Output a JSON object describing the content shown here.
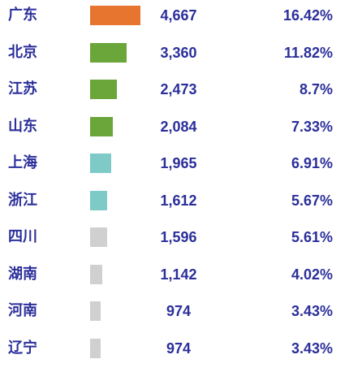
{
  "chart_data": {
    "type": "table",
    "title": "",
    "xlabel": "",
    "ylabel": "",
    "categories": [
      "广东",
      "北京",
      "江苏",
      "山东",
      "上海",
      "浙江",
      "四川",
      "湖南",
      "河南",
      "辽宁"
    ],
    "values": [
      4667,
      3360,
      2473,
      2084,
      1965,
      1612,
      1596,
      1142,
      974,
      974
    ],
    "value_labels": [
      "4,667",
      "3,360",
      "2,473",
      "2,084",
      "1,965",
      "1,612",
      "1,596",
      "1,142",
      "974",
      "974"
    ],
    "percent_labels": [
      "16.42%",
      "11.82%",
      "8.7%",
      "7.33%",
      "6.91%",
      "5.67%",
      "5.61%",
      "4.02%",
      "3.43%",
      "3.43%"
    ],
    "bar_colors": [
      "#e8752f",
      "#6aa639",
      "#6aa639",
      "#6aa639",
      "#7ecac7",
      "#7ecac7",
      "#d0d0d0",
      "#d0d0d0",
      "#d0d0d0",
      "#d0d0d0"
    ],
    "xlim": [
      0,
      4667
    ],
    "text_color": "#2b2f9a"
  }
}
